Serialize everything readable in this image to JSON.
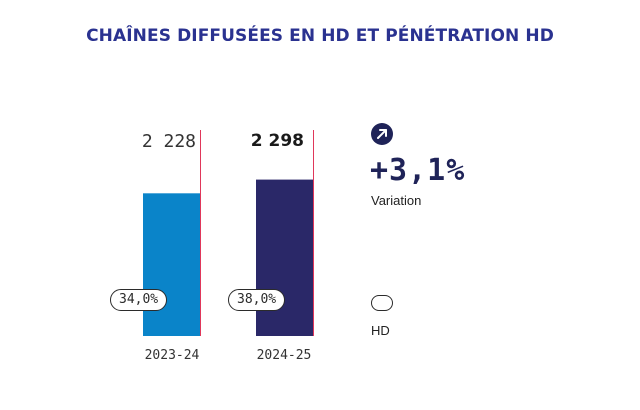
{
  "title": "CHAÎNES DIFFUSÉES EN HD ET PÉNÉTRATION HD",
  "chart_data": {
    "type": "bar",
    "categories": [
      "2023-24",
      "2024-25"
    ],
    "values": [
      2228,
      2298
    ],
    "value_labels": [
      "2 228",
      "2 298"
    ],
    "hd_penetration_labels": [
      "34,0%",
      "38,0%"
    ],
    "hd_penetration": [
      34.0,
      38.0
    ],
    "bar_colors": [
      "#0a84c9",
      "#2a2868"
    ],
    "accent_line_color": "#e0375a"
  },
  "variation": {
    "value": "+3,1%",
    "label": "Variation",
    "icon": "arrow-up-right-icon"
  },
  "legend": {
    "label": "HD"
  }
}
